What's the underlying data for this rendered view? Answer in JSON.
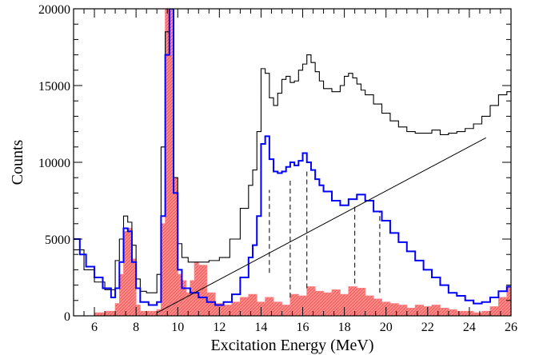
{
  "chart_data": {
    "type": "histogram",
    "title": "",
    "xlabel": "Excitation Energy (MeV)",
    "ylabel": "Counts",
    "xlim": [
      5,
      26
    ],
    "ylim": [
      0,
      20000
    ],
    "grid": false,
    "legend": "none",
    "x_ticks": [
      6,
      8,
      10,
      12,
      14,
      16,
      18,
      20,
      22,
      24,
      26
    ],
    "y_ticks": [
      0,
      5000,
      10000,
      15000,
      20000
    ],
    "x_tick_labels": [
      "6",
      "8",
      "10",
      "12",
      "14",
      "16",
      "18",
      "20",
      "22",
      "24",
      "26"
    ],
    "y_tick_labels": [
      "0",
      "5000",
      "10000",
      "15000",
      "20000"
    ],
    "series": [
      {
        "style": "step",
        "color": "#000000",
        "x": [
          5.0,
          5.5,
          6.0,
          6.5,
          7.0,
          7.2,
          7.4,
          7.6,
          7.8,
          8.0,
          8.2,
          8.5,
          9.0,
          9.2,
          9.4,
          9.6,
          9.8,
          10.0,
          10.2,
          10.5,
          11.0,
          11.5,
          12.0,
          12.5,
          13.0,
          13.4,
          13.6,
          13.8,
          14.0,
          14.2,
          14.4,
          14.6,
          14.8,
          15.0,
          15.2,
          15.4,
          15.6,
          15.8,
          16.0,
          16.2,
          16.4,
          16.6,
          16.8,
          17.0,
          17.4,
          17.8,
          18.0,
          18.2,
          18.4,
          18.6,
          18.8,
          19.0,
          19.4,
          19.8,
          20.2,
          20.6,
          21.0,
          21.4,
          21.8,
          22.2,
          22.6,
          23.0,
          23.4,
          23.8,
          24.2,
          24.6,
          25.0,
          25.4,
          25.8
        ],
        "y": [
          4300,
          3000,
          2200,
          1700,
          3600,
          5000,
          6500,
          6100,
          4600,
          2400,
          1600,
          1500,
          2700,
          11000,
          18500,
          20000,
          9000,
          4700,
          3800,
          3500,
          3500,
          3600,
          3800,
          5000,
          7000,
          8500,
          9500,
          12000,
          16100,
          15800,
          14200,
          13700,
          14500,
          15400,
          15600,
          15200,
          15300,
          16000,
          16400,
          17000,
          16500,
          15900,
          15300,
          14800,
          14600,
          15000,
          15600,
          15800,
          15500,
          15100,
          14700,
          14400,
          13800,
          13200,
          12700,
          12300,
          12000,
          11900,
          11900,
          12100,
          11800,
          11900,
          12000,
          12200,
          12500,
          13000,
          13700,
          14400,
          14600
        ]
      },
      {
        "style": "step",
        "color": "#0000ff",
        "x": [
          5.0,
          5.3,
          5.6,
          6.0,
          6.4,
          6.8,
          7.0,
          7.2,
          7.4,
          7.6,
          7.8,
          8.0,
          8.2,
          8.6,
          9.0,
          9.2,
          9.4,
          9.6,
          9.8,
          10.0,
          10.2,
          10.6,
          11.0,
          11.4,
          11.8,
          12.2,
          12.6,
          13.0,
          13.4,
          13.6,
          13.8,
          14.0,
          14.2,
          14.4,
          14.6,
          14.8,
          15.0,
          15.2,
          15.4,
          15.6,
          15.8,
          16.0,
          16.2,
          16.4,
          16.6,
          16.8,
          17.0,
          17.4,
          17.8,
          18.2,
          18.6,
          19.0,
          19.4,
          19.8,
          20.2,
          20.6,
          21.0,
          21.4,
          21.8,
          22.2,
          22.6,
          23.0,
          23.4,
          23.8,
          24.2,
          24.6,
          25.0,
          25.4,
          25.8
        ],
        "y": [
          5000,
          4000,
          3200,
          2500,
          1800,
          1200,
          1800,
          3500,
          5700,
          5500,
          3500,
          1800,
          900,
          700,
          900,
          6500,
          17000,
          20000,
          8000,
          3000,
          1800,
          1500,
          1200,
          900,
          700,
          900,
          1400,
          2500,
          3800,
          4600,
          6500,
          11200,
          11700,
          10200,
          9400,
          9300,
          9400,
          9700,
          10000,
          9800,
          10100,
          10600,
          10000,
          9500,
          8900,
          8500,
          8100,
          7500,
          7200,
          7600,
          7900,
          7500,
          6800,
          6200,
          5400,
          4800,
          4200,
          3600,
          3000,
          2500,
          2000,
          1500,
          1300,
          1000,
          800,
          900,
          1200,
          1600,
          1900
        ]
      },
      {
        "style": "filled-step",
        "color": "#ff8080",
        "x": [
          5.0,
          6.0,
          6.5,
          7.0,
          7.2,
          7.4,
          7.6,
          7.8,
          8.0,
          8.2,
          8.6,
          9.0,
          9.2,
          9.4,
          9.6,
          9.8,
          10.0,
          10.2,
          10.4,
          10.6,
          10.8,
          11.0,
          11.4,
          11.8,
          12.2,
          12.6,
          13.0,
          13.4,
          13.8,
          14.2,
          14.6,
          15.0,
          15.4,
          15.8,
          16.2,
          16.6,
          17.0,
          17.4,
          17.8,
          18.2,
          18.6,
          19.0,
          19.4,
          19.8,
          20.2,
          20.6,
          21.0,
          21.4,
          21.8,
          22.2,
          22.6,
          23.0,
          23.4,
          23.8,
          24.2,
          24.6,
          25.0,
          25.4,
          25.8
        ],
        "y": [
          0,
          200,
          300,
          800,
          2700,
          5500,
          5700,
          3700,
          700,
          300,
          300,
          400,
          6000,
          20000,
          20000,
          9000,
          2700,
          2300,
          1500,
          2300,
          3500,
          3300,
          1500,
          800,
          700,
          900,
          1200,
          1400,
          900,
          1200,
          900,
          700,
          1400,
          1300,
          1900,
          1600,
          1500,
          1700,
          1400,
          1900,
          1800,
          1300,
          1100,
          900,
          800,
          700,
          500,
          700,
          600,
          700,
          500,
          400,
          300,
          300,
          200,
          300,
          600,
          1200,
          1900
        ]
      },
      {
        "style": "line",
        "color": "#000000",
        "x": [
          9.0,
          24.8
        ],
        "y": [
          200,
          11600
        ]
      }
    ],
    "dashed_markers": [
      {
        "x": 14.4,
        "y_bottom": 2800,
        "y_top": 8200
      },
      {
        "x": 15.4,
        "y_bottom": 1200,
        "y_top": 9000
      },
      {
        "x": 16.2,
        "y_bottom": 1800,
        "y_top": 9500
      },
      {
        "x": 18.5,
        "y_bottom": 2100,
        "y_top": 7100
      },
      {
        "x": 19.7,
        "y_bottom": 1500,
        "y_top": 6800
      }
    ]
  }
}
